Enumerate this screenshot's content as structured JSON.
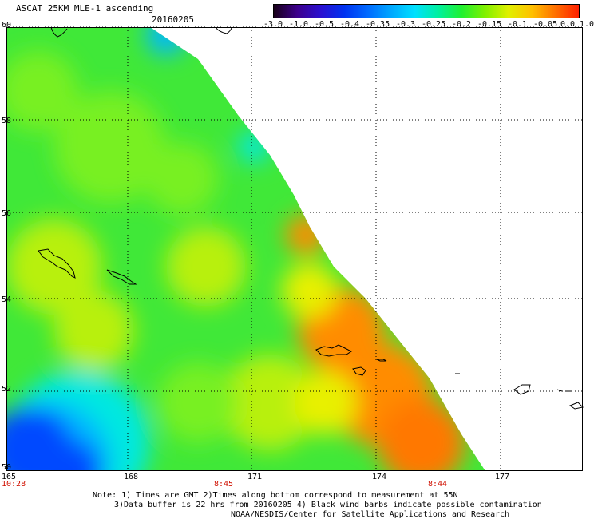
{
  "title": "ASCAT 25KM MLE-1 ascending",
  "date": "20160205",
  "colorbar": {
    "labels": [
      "-3.0",
      "-1.0",
      "-0.5",
      "-0.4",
      "-0.35",
      "-0.3",
      "-0.25",
      "-0.2",
      "-0.15",
      "-0.1",
      "-0.05",
      "0.0",
      "1.0"
    ],
    "colors": [
      "#180018",
      "#3c008c",
      "#2a10d0",
      "#0032f0",
      "#006aff",
      "#00a8ff",
      "#00e0ff",
      "#00f0a0",
      "#20f030",
      "#80f000",
      "#e0f000",
      "#ffc000",
      "#ff7000",
      "#ff2000"
    ]
  },
  "lat_labels": [
    "60",
    "58",
    "56",
    "54",
    "52",
    "50"
  ],
  "lon_labels": [
    "165",
    "168",
    "171",
    "174",
    "177"
  ],
  "time_labels": [
    "10:28",
    "8:45",
    "8:44"
  ],
  "notes": [
    "Note: 1) Times are GMT 2)Times along bottom correspond to measurement at 55N",
    "3)Data buffer is 22 hrs from 20160205 4) Black wind barbs indicate possible contamination",
    "NOAA/NESDIS/Center for Satellite Applications and Research"
  ],
  "map_colors": {
    "green": "#40e838",
    "lightgreen": "#78f020",
    "yellowgreen": "#b8f010",
    "yellow": "#e8f000",
    "orange": "#ff8c00",
    "darkorange": "#ff7800",
    "cyan": "#00e8e0",
    "skyblue": "#00b8ff",
    "blue": "#0048ff"
  }
}
